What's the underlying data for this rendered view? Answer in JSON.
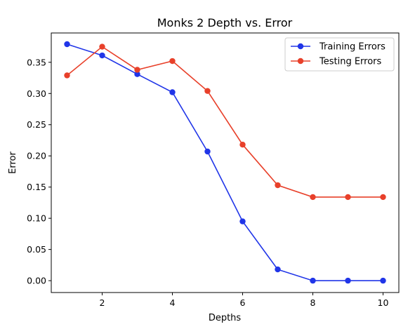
{
  "chart_data": {
    "type": "line",
    "title": "Monks 2 Depth vs. Error",
    "xlabel": "Depths",
    "ylabel": "Error",
    "xlim": [
      0.55,
      10.45
    ],
    "ylim": [
      -0.019,
      0.397
    ],
    "xticks": [
      2,
      4,
      6,
      8,
      10
    ],
    "yticks": [
      0.0,
      0.05,
      0.1,
      0.15,
      0.2,
      0.25,
      0.3,
      0.35
    ],
    "ytick_labels": [
      "0.00",
      "0.05",
      "0.10",
      "0.15",
      "0.20",
      "0.25",
      "0.30",
      "0.35"
    ],
    "xtick_labels": [
      "2",
      "4",
      "6",
      "8",
      "10"
    ],
    "legend_position": "top-right",
    "grid": false,
    "x": [
      1,
      2,
      3,
      4,
      5,
      6,
      7,
      8,
      9,
      10
    ],
    "series": [
      {
        "name": "Training Errors",
        "color": "#2035e8",
        "values": [
          0.379,
          0.361,
          0.331,
          0.302,
          0.207,
          0.095,
          0.018,
          0.0,
          0.0,
          0.0
        ]
      },
      {
        "name": "Testing Errors",
        "color": "#e8402a",
        "values": [
          0.329,
          0.375,
          0.338,
          0.352,
          0.304,
          0.218,
          0.153,
          0.134,
          0.134,
          0.134
        ]
      }
    ]
  }
}
